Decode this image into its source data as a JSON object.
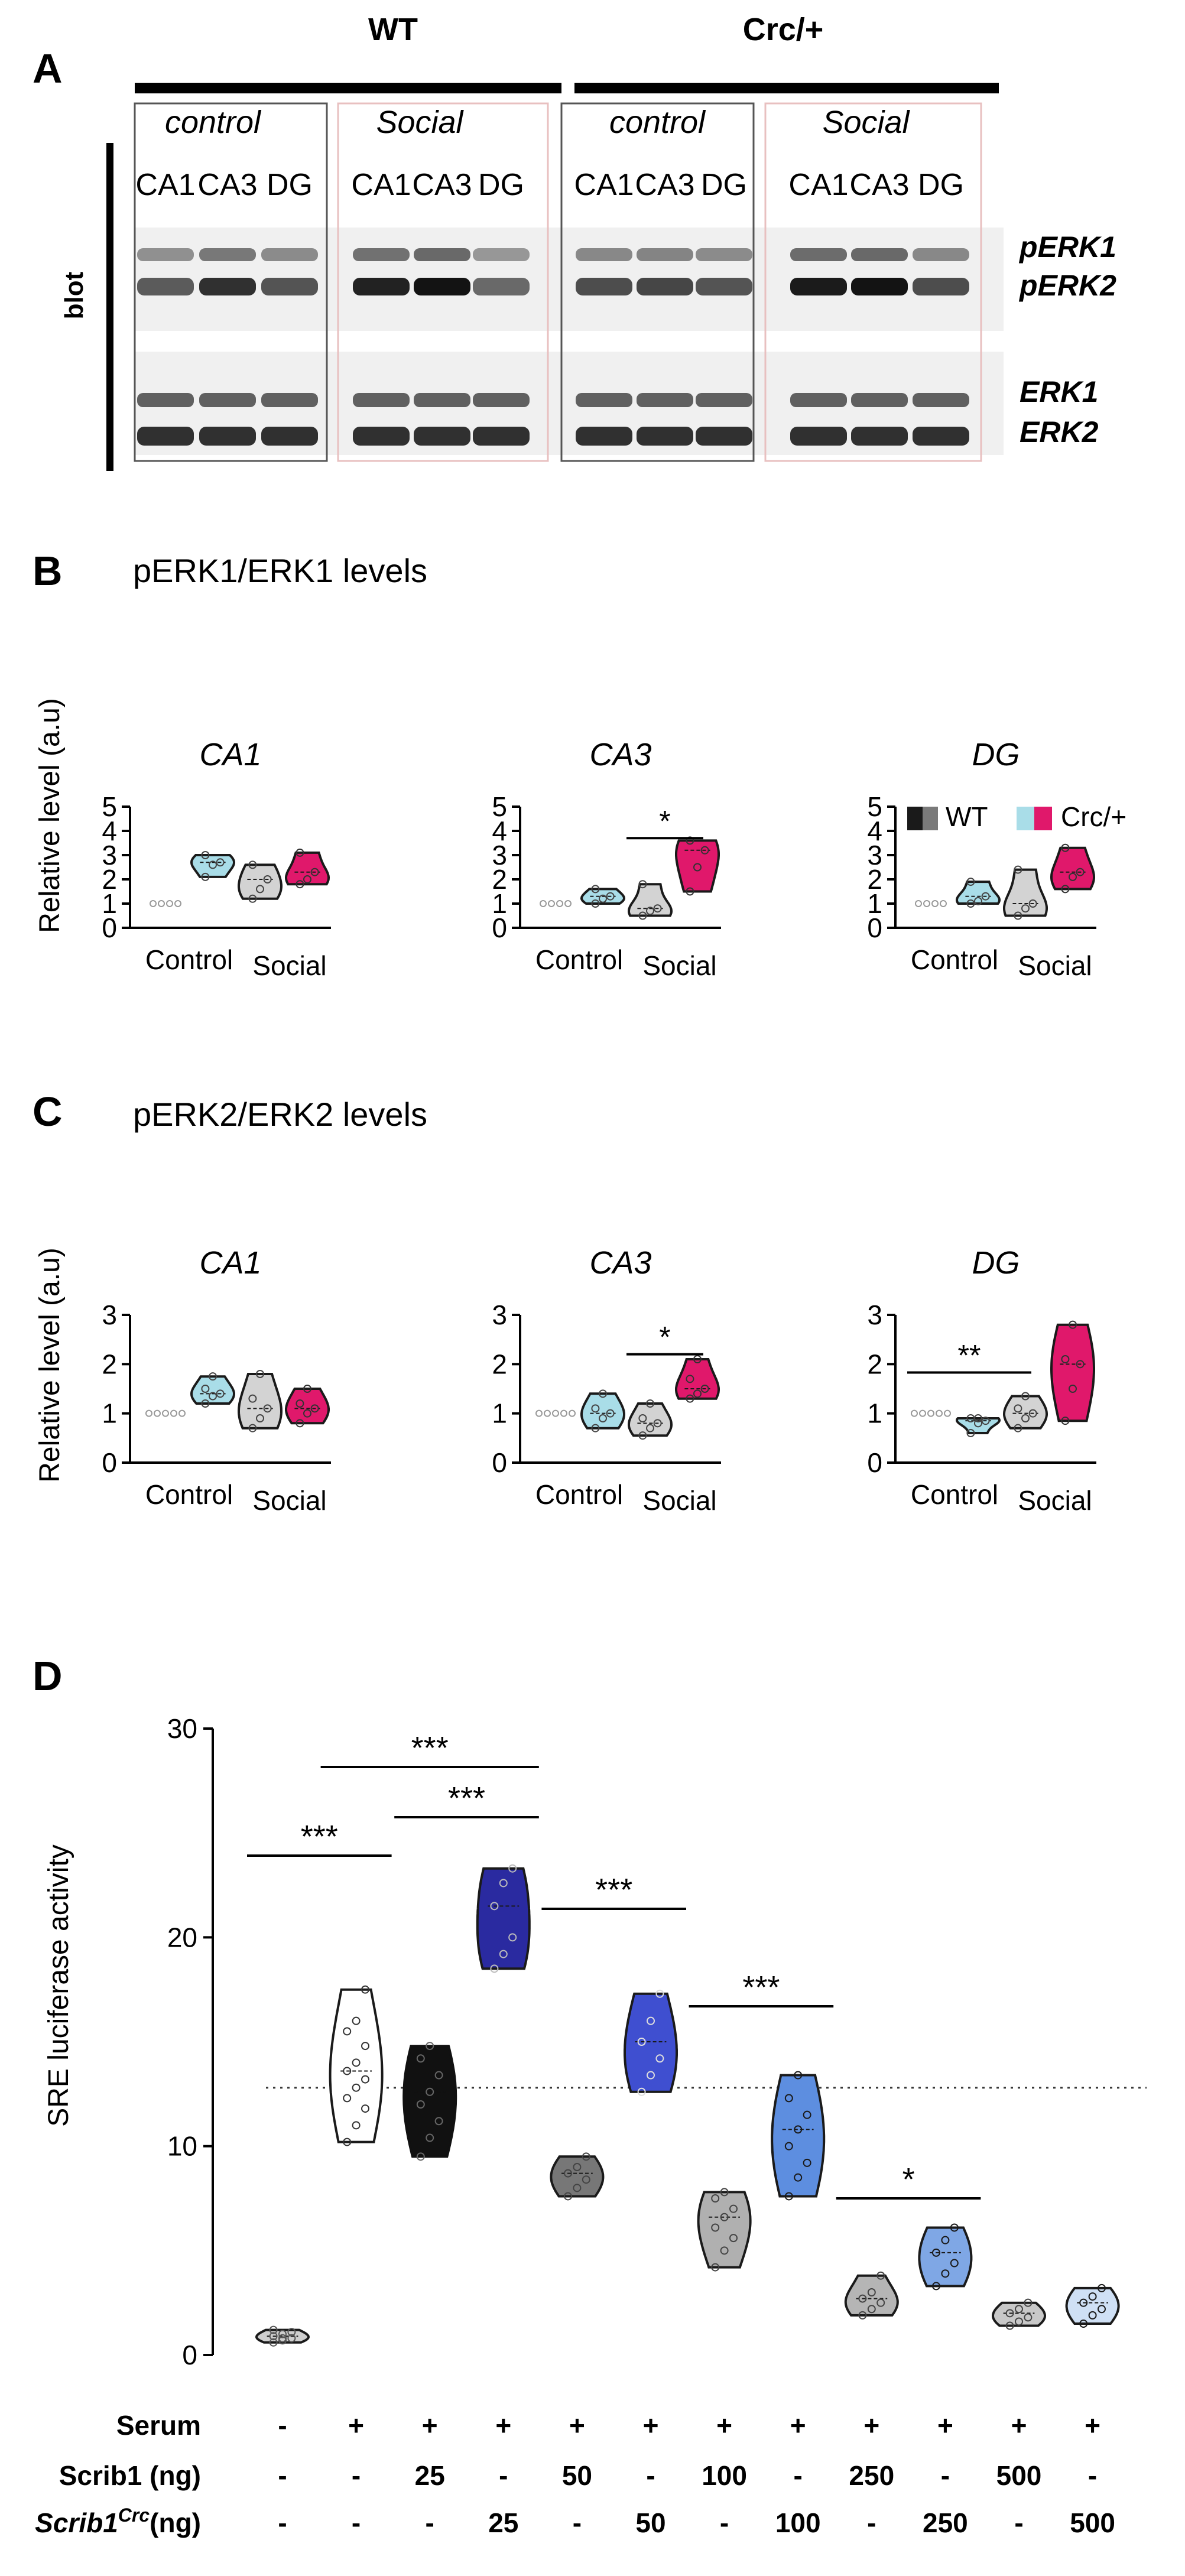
{
  "colors": {
    "wt_dark": "#1a1a1a",
    "wt_grey": "#d3d3d3",
    "crc_cyan": "#a9dde8",
    "crc_magenta": "#e0186b",
    "navy": "#2a2aa0",
    "royal": "#3f4fd0",
    "lightblue": "#5d8ee0",
    "scrib_blue": "#3c3c9c"
  },
  "panelA": {
    "letter": "A",
    "groups": [
      "WT",
      "Crc/+"
    ],
    "conditions": [
      "control",
      "Social",
      "control",
      "Social"
    ],
    "lanes": [
      "CA1",
      "CA3",
      "DG",
      "CA1",
      "CA3",
      "DG",
      "CA1",
      "CA3",
      "DG",
      "CA1",
      "CA3",
      "DG"
    ],
    "blot_label": "blot",
    "band_labels": [
      "pERK1",
      "pERK2",
      "ERK1",
      "ERK2"
    ]
  },
  "panelB": {
    "letter": "B",
    "title": "pERK1/ERK1 levels",
    "ylabel": "Relative level (a.u)"
  },
  "panelC": {
    "letter": "C",
    "title": "pERK2/ERK2 levels",
    "ylabel": "Relative level (a.u)"
  },
  "legend": {
    "wt": "WT",
    "crc": "Crc/+"
  },
  "panelD": {
    "letter": "D",
    "ylabel": "SRE luciferase activity",
    "row_labels": [
      "Serum",
      "Scrib1 (ng)",
      "Scrib1",
      "Crc",
      "(ng)"
    ],
    "serum": [
      "-",
      "+",
      "+",
      "+",
      "+",
      "+",
      "+",
      "+",
      "+",
      "+",
      "+",
      "+"
    ],
    "scrib1": [
      "-",
      "-",
      "25",
      "-",
      "50",
      "-",
      "100",
      "-",
      "250",
      "-",
      "500",
      "-"
    ],
    "scrib1crc": [
      "-",
      "-",
      "-",
      "25",
      "-",
      "50",
      "-",
      "100",
      "-",
      "250",
      "-",
      "500"
    ]
  },
  "chart_data": [
    {
      "type": "violin",
      "id": "B-CA1",
      "title": "CA1",
      "ylim": [
        0,
        5
      ],
      "yticks": [
        "0",
        "1",
        "2",
        "3",
        "4",
        "5"
      ],
      "categories": [
        "Control",
        "Social"
      ],
      "sig": null,
      "series": [
        {
          "name": "WT",
          "group": "Control",
          "values": [
            1,
            1,
            1,
            1
          ]
        },
        {
          "name": "Crc/+",
          "group": "Control",
          "values": [
            2.1,
            2.6,
            2.7,
            3.0
          ]
        },
        {
          "name": "WT",
          "group": "Social",
          "values": [
            1.2,
            1.6,
            2.0,
            2.6
          ]
        },
        {
          "name": "Crc/+",
          "group": "Social",
          "values": [
            1.8,
            2.0,
            2.3,
            3.1
          ]
        }
      ]
    },
    {
      "type": "violin",
      "id": "B-CA3",
      "title": "CA3",
      "ylim": [
        0,
        5
      ],
      "yticks": [
        "0",
        "1",
        "2",
        "3",
        "4",
        "5"
      ],
      "categories": [
        "Control",
        "Social"
      ],
      "sig": "*",
      "series": [
        {
          "name": "WT",
          "group": "Control",
          "values": [
            1,
            1,
            1,
            1
          ]
        },
        {
          "name": "Crc/+",
          "group": "Control",
          "values": [
            1.0,
            1.2,
            1.3,
            1.6
          ]
        },
        {
          "name": "WT",
          "group": "Social",
          "values": [
            0.5,
            0.7,
            0.8,
            1.8
          ]
        },
        {
          "name": "Crc/+",
          "group": "Social",
          "values": [
            1.5,
            2.5,
            3.2,
            3.6
          ]
        }
      ]
    },
    {
      "type": "violin",
      "id": "B-DG",
      "title": "DG",
      "ylim": [
        0,
        5
      ],
      "yticks": [
        "0",
        "1",
        "2",
        "3",
        "4",
        "5"
      ],
      "categories": [
        "Control",
        "Social"
      ],
      "sig": null,
      "series": [
        {
          "name": "WT",
          "group": "Control",
          "values": [
            1,
            1,
            1,
            1
          ]
        },
        {
          "name": "Crc/+",
          "group": "Control",
          "values": [
            1.0,
            1.1,
            1.3,
            1.9
          ]
        },
        {
          "name": "WT",
          "group": "Social",
          "values": [
            0.5,
            0.8,
            1.0,
            2.4
          ]
        },
        {
          "name": "Crc/+",
          "group": "Social",
          "values": [
            1.6,
            2.1,
            2.3,
            3.3
          ]
        }
      ]
    },
    {
      "type": "violin",
      "id": "C-CA1",
      "title": "CA1",
      "ylim": [
        0,
        3
      ],
      "yticks": [
        "0",
        "1",
        "2",
        "3"
      ],
      "categories": [
        "Control",
        "Social"
      ],
      "sig": null,
      "series": [
        {
          "name": "WT",
          "group": "Control",
          "values": [
            1,
            1,
            1,
            1,
            1
          ]
        },
        {
          "name": "Crc/+",
          "group": "Control",
          "values": [
            1.2,
            1.35,
            1.4,
            1.5,
            1.75
          ]
        },
        {
          "name": "WT",
          "group": "Social",
          "values": [
            0.7,
            0.9,
            1.1,
            1.3,
            1.8
          ]
        },
        {
          "name": "Crc/+",
          "group": "Social",
          "values": [
            0.8,
            1.0,
            1.1,
            1.2,
            1.5
          ]
        }
      ]
    },
    {
      "type": "violin",
      "id": "C-CA3",
      "title": "CA3",
      "ylim": [
        0,
        3
      ],
      "yticks": [
        "0",
        "1",
        "2",
        "3"
      ],
      "categories": [
        "Control",
        "Social"
      ],
      "sig": "*",
      "series": [
        {
          "name": "WT",
          "group": "Control",
          "values": [
            1,
            1,
            1,
            1,
            1
          ]
        },
        {
          "name": "Crc/+",
          "group": "Control",
          "values": [
            0.7,
            0.9,
            1.0,
            1.1,
            1.4
          ]
        },
        {
          "name": "WT",
          "group": "Social",
          "values": [
            0.55,
            0.7,
            0.8,
            0.9,
            1.2
          ]
        },
        {
          "name": "Crc/+",
          "group": "Social",
          "values": [
            1.3,
            1.4,
            1.5,
            1.7,
            2.1
          ]
        }
      ]
    },
    {
      "type": "violin",
      "id": "C-DG",
      "title": "DG",
      "ylim": [
        0,
        3
      ],
      "yticks": [
        "0",
        "1",
        "2",
        "3"
      ],
      "categories": [
        "Control",
        "Social"
      ],
      "sig": "**",
      "series": [
        {
          "name": "WT",
          "group": "Control",
          "values": [
            1,
            1,
            1,
            1,
            1
          ]
        },
        {
          "name": "Crc/+",
          "group": "Control",
          "values": [
            0.6,
            0.8,
            0.85,
            0.9,
            0.9
          ]
        },
        {
          "name": "WT",
          "group": "Social",
          "values": [
            0.7,
            0.9,
            1.0,
            1.1,
            1.35
          ]
        },
        {
          "name": "Crc/+",
          "group": "Social",
          "values": [
            0.85,
            1.5,
            2.0,
            2.1,
            2.8
          ]
        }
      ]
    },
    {
      "type": "violin",
      "id": "D-SRE",
      "ylabel": "SRE luciferase activity",
      "ylim": [
        0,
        30
      ],
      "yticks": [
        "0",
        "10",
        "20",
        "30"
      ],
      "reference_line": 12.8,
      "significance": [
        {
          "from": 0,
          "to": 1,
          "label": "***"
        },
        {
          "from": 1,
          "to": 3,
          "label": "***"
        },
        {
          "from": 2,
          "to": 3,
          "label": "***"
        },
        {
          "from": 4,
          "to": 5,
          "label": "***"
        },
        {
          "from": 6,
          "to": 7,
          "label": "***"
        },
        {
          "from": 8,
          "to": 9,
          "label": "*"
        }
      ],
      "series": [
        {
          "name": "no serum",
          "values": [
            0.6,
            0.7,
            0.8,
            0.9,
            1.0,
            1.1,
            1.2,
            0.8
          ]
        },
        {
          "name": "serum",
          "values": [
            10.2,
            11.0,
            11.8,
            12.3,
            12.8,
            13.2,
            13.6,
            14.0,
            14.8,
            15.5,
            16.0,
            17.5
          ]
        },
        {
          "name": "Scrib1 25 ng",
          "values": [
            9.5,
            10.4,
            11.2,
            12.0,
            12.6,
            13.4,
            14.2,
            14.8
          ]
        },
        {
          "name": "Scrib1Crc 25 ng",
          "values": [
            18.5,
            19.2,
            20.0,
            21.5,
            22.6,
            23.3
          ]
        },
        {
          "name": "Scrib1 50 ng",
          "values": [
            7.6,
            8.0,
            8.4,
            8.7,
            9.0,
            9.5
          ]
        },
        {
          "name": "Scrib1Crc 50 ng",
          "values": [
            12.6,
            13.4,
            14.2,
            15.0,
            16.0,
            17.3
          ]
        },
        {
          "name": "Scrib1 100 ng",
          "values": [
            4.2,
            5.0,
            5.6,
            6.1,
            6.6,
            7.0,
            7.5,
            7.8
          ]
        },
        {
          "name": "Scrib1Crc 100 ng",
          "values": [
            7.6,
            8.5,
            9.2,
            10.0,
            10.8,
            11.5,
            12.3,
            13.4
          ]
        },
        {
          "name": "Scrib1 250 ng",
          "values": [
            1.9,
            2.2,
            2.5,
            2.7,
            3.0,
            3.8
          ]
        },
        {
          "name": "Scrib1Crc 250 ng",
          "values": [
            3.3,
            3.9,
            4.4,
            4.9,
            5.5,
            6.1
          ]
        },
        {
          "name": "Scrib1 500 ng",
          "values": [
            1.4,
            1.6,
            1.8,
            2.0,
            2.2,
            2.5
          ]
        },
        {
          "name": "Scrib1Crc 500 ng",
          "values": [
            1.5,
            1.9,
            2.2,
            2.5,
            2.8,
            3.2
          ]
        }
      ]
    }
  ]
}
